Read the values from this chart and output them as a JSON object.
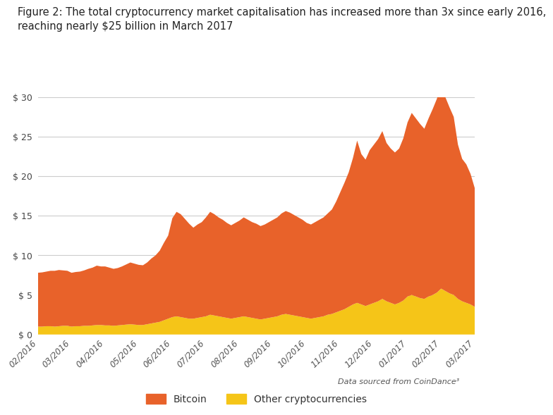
{
  "title_line1": "Figure 2: The total cryptocurrency market capitalisation has increased more than 3x since early 2016,",
  "title_line2": "reaching nearly $25 billion in March 2017",
  "title_fontsize": 10.5,
  "title_color": "#222222",
  "yticks": [
    0,
    5,
    10,
    15,
    20,
    25,
    30
  ],
  "ylim": [
    0,
    30
  ],
  "source_text": "Data sourced from CoinDance³",
  "bitcoin_color": "#e8622a",
  "other_color": "#f5c518",
  "background_color": "#ffffff",
  "grid_color": "#cccccc",
  "legend_bitcoin": "Bitcoin",
  "legend_other": "Other cryptocurrencies",
  "x_labels": [
    "02/2016",
    "03/2016",
    "04/2016",
    "05/2016",
    "06/2016",
    "07/2016",
    "08/2016",
    "09/2016",
    "10/2016",
    "11/2016",
    "12/2016",
    "01/2017",
    "02/2017",
    "03/2017"
  ],
  "bitcoin_data": [
    6.8,
    6.85,
    6.9,
    7.0,
    7.05,
    7.1,
    7.0,
    6.95,
    6.8,
    6.85,
    6.9,
    7.0,
    7.2,
    7.3,
    7.5,
    7.4,
    7.45,
    7.3,
    7.2,
    7.25,
    7.4,
    7.6,
    7.8,
    7.7,
    7.6,
    7.55,
    7.8,
    8.2,
    8.5,
    9.0,
    9.8,
    10.5,
    12.5,
    13.2,
    13.0,
    12.5,
    12.0,
    11.5,
    11.8,
    12.0,
    12.5,
    13.0,
    12.8,
    12.5,
    12.3,
    12.0,
    11.8,
    12.0,
    12.2,
    12.5,
    12.3,
    12.1,
    12.0,
    11.8,
    11.9,
    12.1,
    12.3,
    12.5,
    12.8,
    13.0,
    12.9,
    12.7,
    12.5,
    12.3,
    12.0,
    11.9,
    12.1,
    12.3,
    12.5,
    12.8,
    13.2,
    14.0,
    15.0,
    16.0,
    17.0,
    18.5,
    20.5,
    19.0,
    18.5,
    19.5,
    20.0,
    20.5,
    21.2,
    20.0,
    19.5,
    19.2,
    19.5,
    20.5,
    22.0,
    23.0,
    22.5,
    22.0,
    21.5,
    22.5,
    23.5,
    24.5,
    25.8,
    24.5,
    23.5,
    22.5,
    19.5,
    18.0,
    17.5,
    16.5,
    15.0
  ],
  "other_data": [
    1.0,
    1.0,
    1.05,
    1.05,
    1.0,
    1.05,
    1.1,
    1.1,
    1.0,
    1.05,
    1.05,
    1.1,
    1.1,
    1.15,
    1.2,
    1.2,
    1.15,
    1.15,
    1.1,
    1.15,
    1.2,
    1.25,
    1.3,
    1.25,
    1.2,
    1.2,
    1.3,
    1.4,
    1.5,
    1.6,
    1.8,
    2.0,
    2.2,
    2.3,
    2.2,
    2.1,
    2.0,
    2.0,
    2.1,
    2.2,
    2.3,
    2.5,
    2.4,
    2.3,
    2.2,
    2.1,
    2.0,
    2.1,
    2.2,
    2.3,
    2.2,
    2.1,
    2.0,
    1.9,
    2.0,
    2.1,
    2.2,
    2.3,
    2.5,
    2.6,
    2.5,
    2.4,
    2.3,
    2.2,
    2.1,
    2.0,
    2.1,
    2.2,
    2.3,
    2.5,
    2.6,
    2.8,
    3.0,
    3.2,
    3.5,
    3.8,
    4.0,
    3.8,
    3.6,
    3.8,
    4.0,
    4.2,
    4.5,
    4.2,
    4.0,
    3.8,
    4.0,
    4.3,
    4.8,
    5.0,
    4.8,
    4.6,
    4.5,
    4.8,
    5.0,
    5.3,
    5.8,
    5.5,
    5.2,
    5.0,
    4.5,
    4.2,
    4.0,
    3.8,
    3.5
  ],
  "n_points": 105
}
